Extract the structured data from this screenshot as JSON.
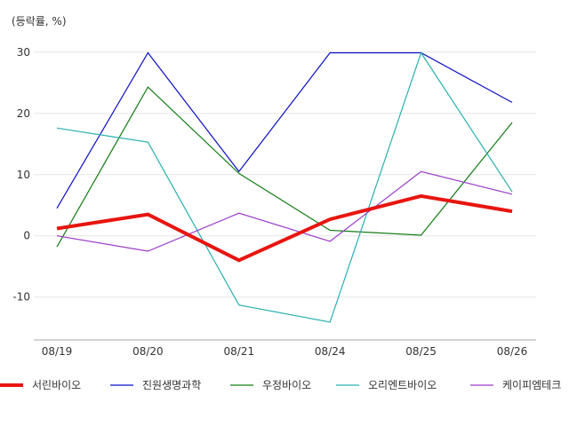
{
  "chart_data": {
    "type": "line",
    "unit_label": "(등락률, %)",
    "categories": [
      "08/19",
      "08/20",
      "08/21",
      "08/24",
      "08/25",
      "08/26"
    ],
    "ylim": [
      -17,
      32
    ],
    "yticks": [
      30,
      20,
      10,
      0,
      -10
    ],
    "ytick_labels": [
      "30",
      "20",
      "10",
      "0",
      "-10"
    ],
    "grid": true,
    "legend_position": "bottom",
    "series": [
      {
        "name": "서린바이오",
        "color": "#e8150f",
        "emphasis": true,
        "values": [
          1.2,
          3.5,
          -4.0,
          2.7,
          6.5,
          4.0
        ]
      },
      {
        "name": "진원생명과학",
        "color": "#0b10c4",
        "emphasis": false,
        "values": [
          4.5,
          29.9,
          10.5,
          29.9,
          29.9,
          21.8
        ]
      },
      {
        "name": "우정바이오",
        "color": "#157d15",
        "emphasis": false,
        "values": [
          -1.8,
          24.3,
          10.2,
          0.9,
          0.1,
          18.5
        ]
      },
      {
        "name": "오리엔트바이오",
        "color": "#2ab0b0",
        "emphasis": false,
        "values": [
          17.6,
          15.3,
          -11.3,
          -14.1,
          29.9,
          7.2
        ]
      },
      {
        "name": "케이피엠테크",
        "color": "#9b3cc8",
        "emphasis": false,
        "values": [
          0.0,
          -2.5,
          3.7,
          -0.9,
          10.5,
          6.8
        ]
      }
    ]
  }
}
